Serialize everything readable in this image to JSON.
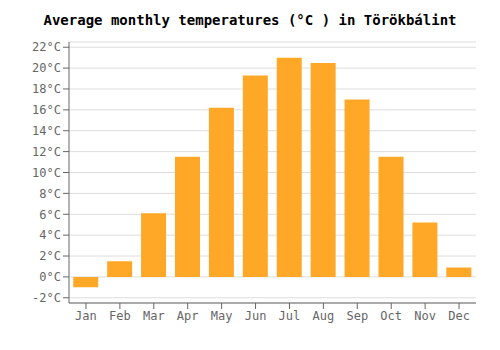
{
  "chart_data": {
    "type": "bar",
    "title": "Average monthly temperatures (°C ) in Törökbálint",
    "categories": [
      "Jan",
      "Feb",
      "Mar",
      "Apr",
      "May",
      "Jun",
      "Jul",
      "Aug",
      "Sep",
      "Oct",
      "Nov",
      "Dec"
    ],
    "values": [
      -1.0,
      1.5,
      6.1,
      11.5,
      16.2,
      19.3,
      21.0,
      20.5,
      17.0,
      11.5,
      5.2,
      0.9
    ],
    "color": "#FFA726",
    "ylim": [
      -2.5,
      22.5
    ],
    "yticks": [
      {
        "value": 22,
        "label": "22°C"
      },
      {
        "value": 20,
        "label": "20°C"
      },
      {
        "value": 18,
        "label": "18°C"
      },
      {
        "value": 16,
        "label": "16°C"
      },
      {
        "value": 14,
        "label": "14°C"
      },
      {
        "value": 12,
        "label": "12°C"
      },
      {
        "value": 10,
        "label": "10°C"
      },
      {
        "value": 8,
        "label": "8°C"
      },
      {
        "value": 6,
        "label": "6°C"
      },
      {
        "value": 4,
        "label": "4°C"
      },
      {
        "value": 2,
        "label": "2°C"
      },
      {
        "value": 0,
        "label": "0°C"
      },
      {
        "value": -2,
        "label": "-2°C"
      }
    ],
    "grid": true
  }
}
